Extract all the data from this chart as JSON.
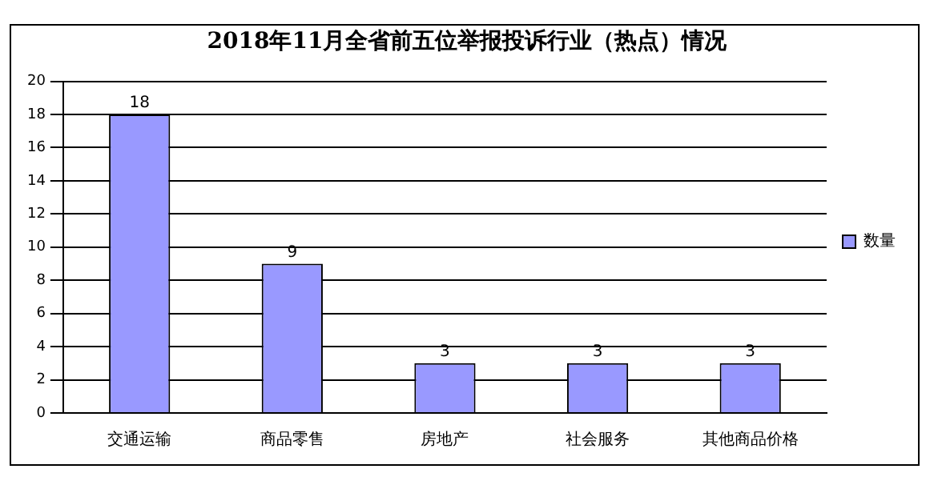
{
  "chart_data": {
    "type": "bar",
    "title": "2018年11月全省前五位举报投诉行业（热点）情况",
    "categories": [
      "交通运输",
      "商品零售",
      "房地产",
      "社会服务",
      "其他商品价格"
    ],
    "series": [
      {
        "name": "数量",
        "color": "#9999ff",
        "values": [
          18,
          9,
          3,
          3,
          3
        ]
      }
    ],
    "ylim": [
      0,
      20
    ],
    "yticks": [
      0,
      2,
      4,
      6,
      8,
      10,
      12,
      14,
      16,
      18,
      20
    ],
    "grid": "y",
    "legend": "right",
    "data_labels": true
  }
}
